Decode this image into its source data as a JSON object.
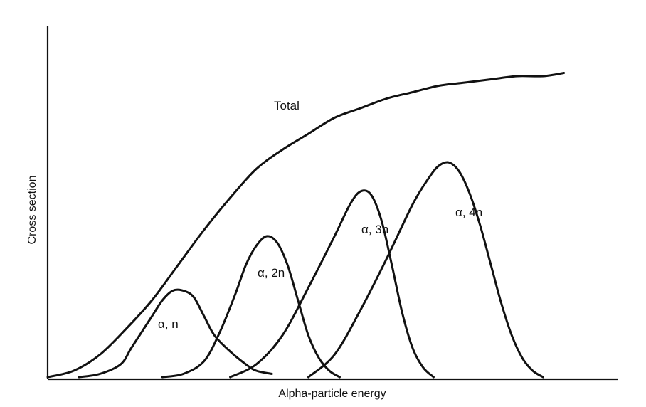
{
  "chart_data": {
    "type": "line",
    "title": "",
    "xlabel": "Alpha-particle energy",
    "ylabel": "Cross section",
    "xlim": [
      0,
      100
    ],
    "ylim": [
      0,
      100
    ],
    "grid": false,
    "legend": "none",
    "ticks_labeled": false,
    "series": [
      {
        "name": "Total",
        "x": [
          0,
          5,
          10,
          15,
          20,
          25,
          30,
          35,
          40,
          45,
          50,
          55,
          60,
          65,
          70,
          75,
          80,
          85,
          90,
          95,
          99
        ],
        "y": [
          0,
          2,
          7,
          15,
          24,
          35,
          46,
          56,
          65,
          71,
          76,
          81,
          84,
          87,
          89,
          91,
          92,
          93,
          94,
          94,
          95
        ]
      },
      {
        "name": "α, n",
        "x": [
          6,
          10,
          14,
          16,
          18,
          20,
          22,
          24,
          26,
          28,
          30,
          32,
          35,
          38,
          40,
          43
        ],
        "y": [
          0,
          1,
          4,
          9,
          14,
          19,
          24,
          27,
          27,
          25,
          19,
          13,
          8,
          4,
          2,
          1
        ]
      },
      {
        "name": "α, 2n",
        "x": [
          22,
          26,
          30,
          33,
          36,
          38,
          40,
          42,
          44,
          46,
          48,
          50,
          52,
          54,
          56
        ],
        "y": [
          0,
          1,
          5,
          14,
          26,
          35,
          41,
          44,
          42,
          35,
          24,
          13,
          6,
          2,
          0
        ]
      },
      {
        "name": "α, 3n",
        "x": [
          35,
          40,
          45,
          50,
          55,
          58,
          60,
          62,
          64,
          66,
          68,
          70,
          72,
          74
        ],
        "y": [
          0,
          4,
          13,
          28,
          44,
          54,
          58,
          57,
          49,
          35,
          20,
          9,
          3,
          0
        ]
      },
      {
        "name": "α, 4n",
        "x": [
          50,
          55,
          60,
          65,
          70,
          73,
          75,
          77,
          79,
          81,
          83,
          85,
          87,
          89,
          91,
          93,
          95
        ],
        "y": [
          0,
          7,
          21,
          37,
          54,
          62,
          66,
          67,
          64,
          57,
          47,
          35,
          23,
          13,
          6,
          2,
          0
        ]
      }
    ]
  }
}
